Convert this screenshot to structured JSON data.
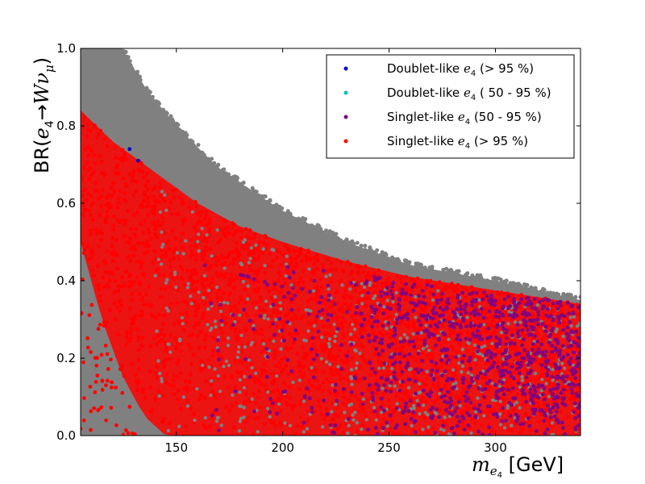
{
  "chart_data": {
    "type": "scatter",
    "xlabel": {
      "symbol": "m",
      "subscript": "e",
      "subsub": "4",
      "unit": " [GeV]"
    },
    "ylabel": {
      "prefix": "BR(",
      "e": "e",
      "e_sub": "4",
      "arrow": "→",
      "W": "W",
      "nu": "ν",
      "nu_sub": "μ",
      "suffix": ")"
    },
    "xlim": [
      105,
      340
    ],
    "ylim": [
      0.0,
      1.0
    ],
    "x_ticks": [
      150,
      200,
      250,
      300
    ],
    "y_ticks": [
      "0.0",
      "0.2",
      "0.4",
      "0.6",
      "0.8",
      "1.0"
    ],
    "legend_position": "top-right",
    "series": [
      {
        "name": "Doublet-like e4 (> 95 %)",
        "label_pre": "Doublet-like ",
        "label_post": " (> 95 %)",
        "color": "#0000cc",
        "points": [
          [
            128,
            0.74
          ],
          [
            132,
            0.71
          ]
        ]
      },
      {
        "name": "Doublet-like e4 ( 50 - 95 %)",
        "label_pre": "Doublet-like ",
        "label_post": " ( 50 - 95 %)",
        "color": "#00bfbf",
        "points": []
      },
      {
        "name": "Singlet-like e4 (50 - 95 %)",
        "label_pre": "Singlet-like ",
        "label_post": " (50 - 95 %)",
        "color": "#800080",
        "region": {
          "x_min": 160,
          "x_max": 340,
          "upper_at_min": 0.47,
          "upper_at_max": 0.34,
          "lower": 0.0
        }
      },
      {
        "name": "Singlet-like e4 (> 95 %)",
        "label_pre": "Singlet-like ",
        "label_post": " (> 95 %)",
        "color": "#ff0000",
        "upper_envelope": [
          [
            105,
            0.84
          ],
          [
            120,
            0.76
          ],
          [
            140,
            0.68
          ],
          [
            160,
            0.6
          ],
          [
            180,
            0.54
          ],
          [
            200,
            0.5
          ],
          [
            230,
            0.45
          ],
          [
            260,
            0.41
          ],
          [
            300,
            0.375
          ],
          [
            340,
            0.34
          ]
        ],
        "lower_envelope": [
          [
            105,
            0.5
          ],
          [
            115,
            0.3
          ],
          [
            125,
            0.15
          ],
          [
            135,
            0.05
          ],
          [
            145,
            0.0
          ],
          [
            340,
            0.0
          ]
        ]
      }
    ],
    "background": {
      "name": "all points",
      "color": "#808080",
      "upper_envelope": [
        [
          105,
          1.0
        ],
        [
          125,
          1.0
        ],
        [
          135,
          0.9
        ],
        [
          150,
          0.8
        ],
        [
          170,
          0.69
        ],
        [
          200,
          0.58
        ],
        [
          230,
          0.5
        ],
        [
          260,
          0.44
        ],
        [
          300,
          0.4
        ],
        [
          340,
          0.35
        ]
      ],
      "lower_bound": 0.0
    }
  }
}
